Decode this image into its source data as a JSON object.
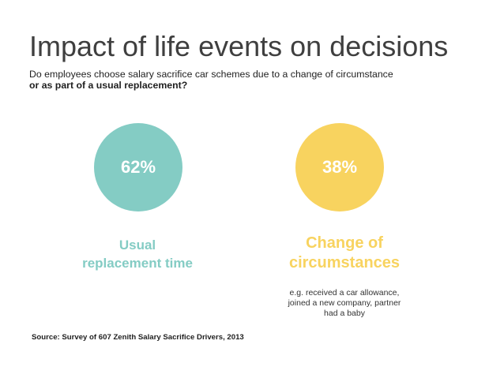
{
  "title": "Impact of life events on decisions",
  "subtitle": {
    "line1": "Do employees choose salary sacrifice car schemes due to a change of circumstance",
    "line2": "or as part of a usual replacement?"
  },
  "chart_data": {
    "type": "pie",
    "title": "Impact of life events on decisions",
    "categories": [
      "Usual replacement time",
      "Change of circumstances"
    ],
    "values": [
      62,
      38
    ],
    "value_labels": [
      "62%",
      "38%"
    ],
    "colors": [
      "#84ccc4",
      "#f8d35f"
    ],
    "series_labels": {
      "usual": "Usual replacement time",
      "change": "Change of circumstances"
    },
    "annotation": "e.g. received a car allowance, joined a new company,  partner had a baby"
  },
  "source": "Source: Survey of 607 Zenith Salary Sacrifice Drivers, 2013"
}
